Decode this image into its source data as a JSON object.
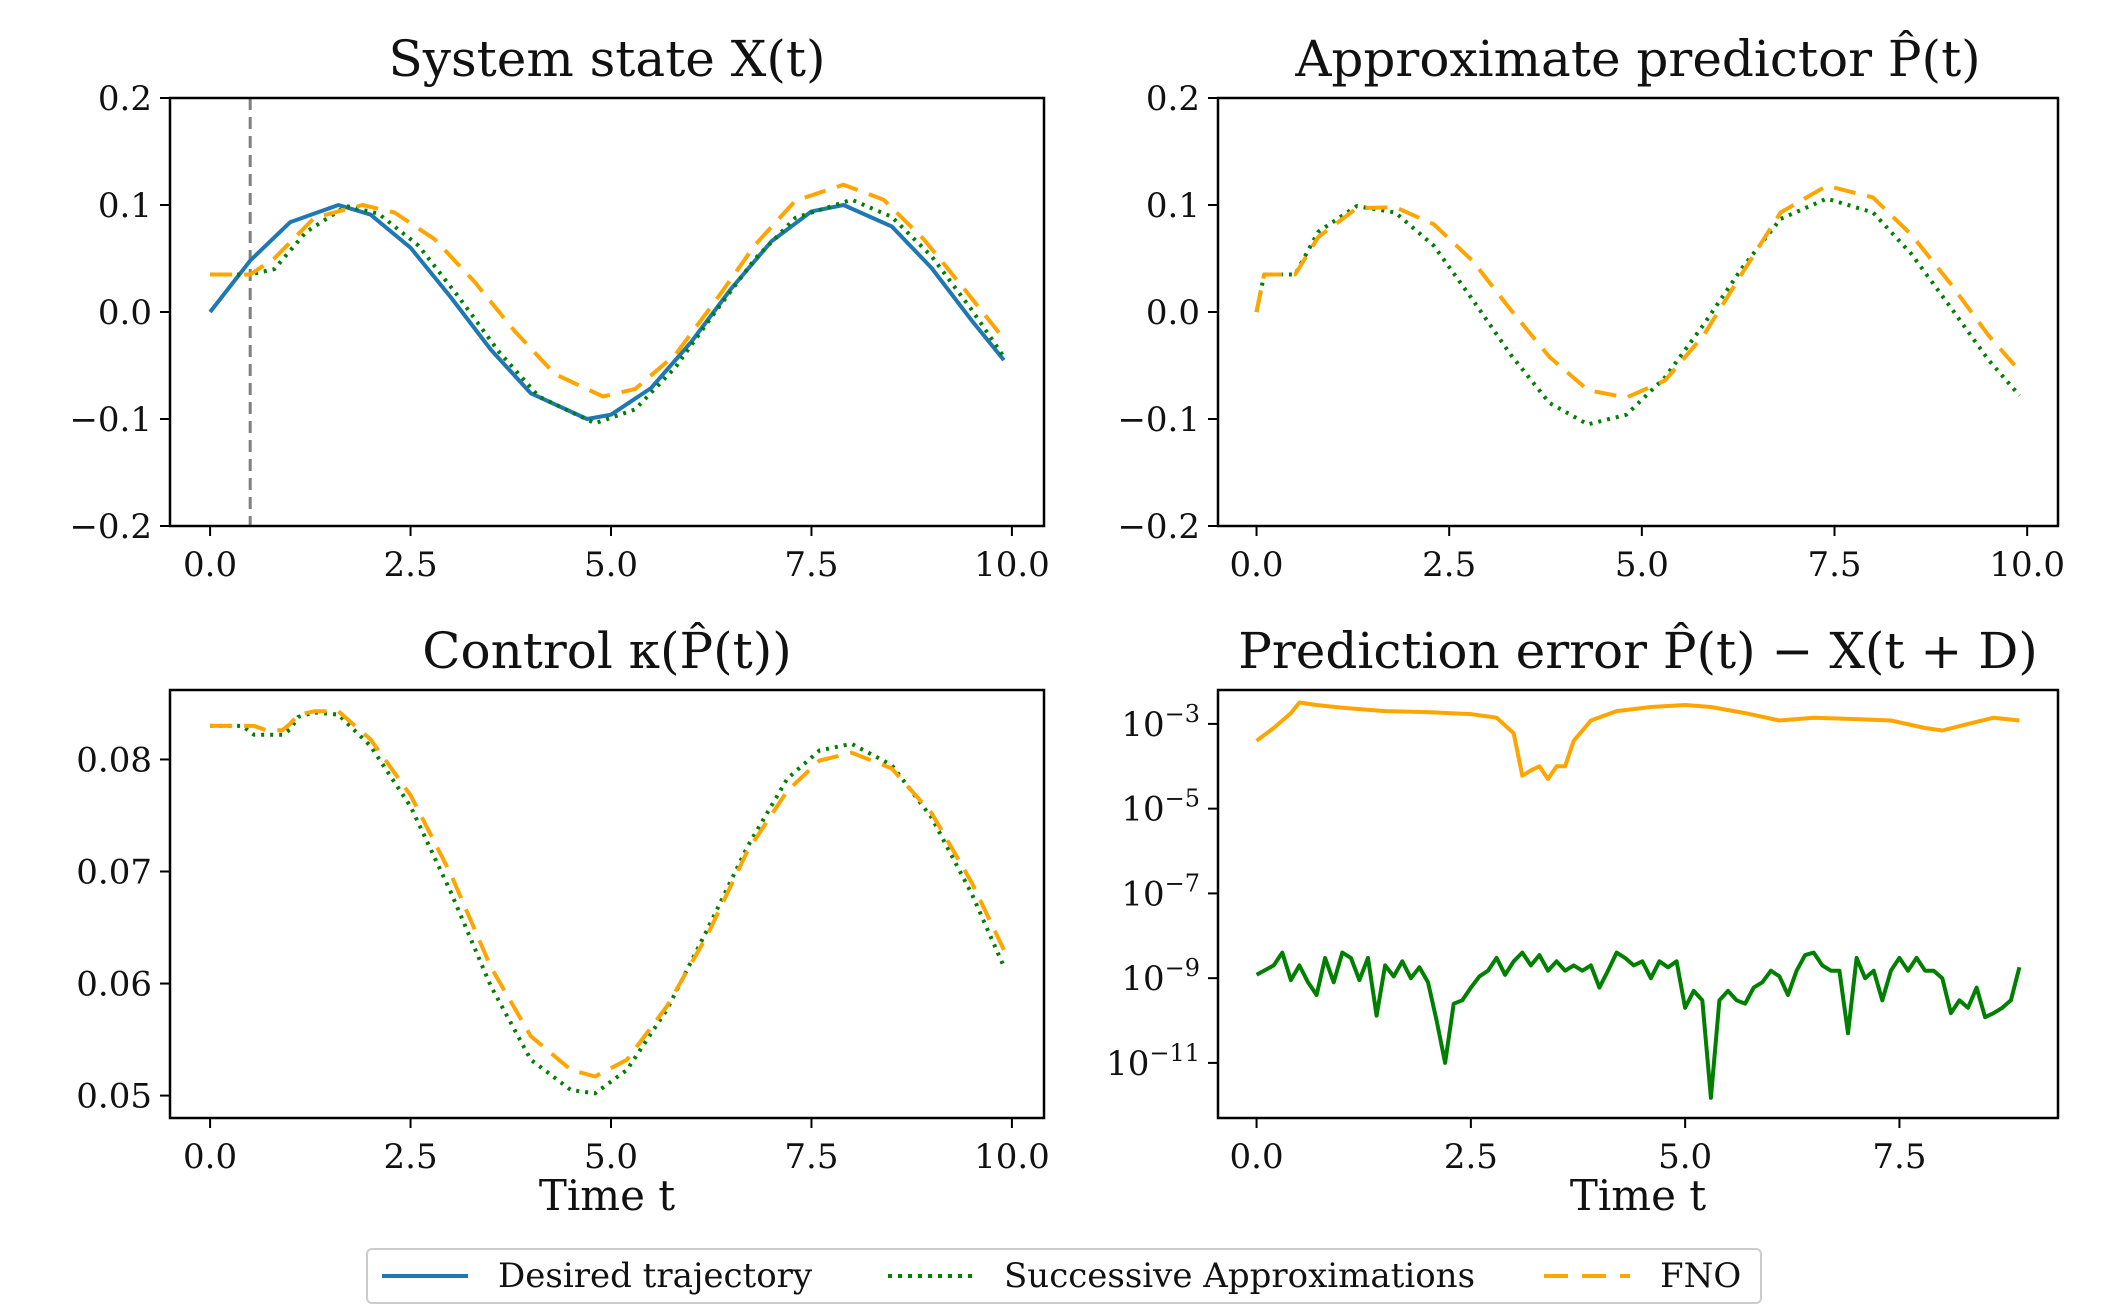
{
  "legend": {
    "entries": [
      {
        "label": "Desired trajectory",
        "color": "#1f77b4",
        "style": "solid"
      },
      {
        "label": "Successive Approximations",
        "color": "#007f00",
        "style": "dotted"
      },
      {
        "label": "FNO",
        "color": "#ffa500",
        "style": "dashed"
      }
    ]
  },
  "chart_data": [
    {
      "type": "line",
      "title": "System state X(t)",
      "xlabel": "",
      "ylabel": "",
      "xlim": [
        -0.5,
        10.4
      ],
      "ylim": [
        -0.2,
        0.2
      ],
      "yscale": "linear",
      "xticks": [
        0.0,
        2.5,
        5.0,
        7.5,
        10.0
      ],
      "xtick_labels": [
        "0.0",
        "2.5",
        "5.0",
        "7.5",
        "10.0"
      ],
      "yticks": [
        -0.2,
        -0.1,
        0.0,
        0.1,
        0.2
      ],
      "ytick_labels": [
        "−0.2",
        "−0.1",
        "0.0",
        "0.1",
        "0.2"
      ],
      "vline": {
        "x": 0.5,
        "color": "#808080",
        "style": "dashed"
      },
      "series": [
        {
          "name": "Desired trajectory",
          "color": "#1f77b4",
          "style": "solid",
          "x": [
            0,
            0.5,
            1.0,
            1.6,
            2.0,
            2.5,
            3.0,
            3.5,
            4.0,
            4.7,
            5.0,
            5.5,
            6.0,
            6.5,
            7.0,
            7.5,
            7.9,
            8.5,
            9.0,
            9.5,
            9.9
          ],
          "y": [
            0.0,
            0.048,
            0.084,
            0.1,
            0.091,
            0.06,
            0.014,
            -0.035,
            -0.076,
            -0.1,
            -0.096,
            -0.071,
            -0.028,
            0.022,
            0.066,
            0.094,
            0.1,
            0.08,
            0.041,
            -0.008,
            -0.045
          ]
        },
        {
          "name": "Successive Approximations",
          "color": "#007f00",
          "style": "dotted",
          "x": [
            0,
            0.5,
            0.8,
            1.2,
            1.7,
            2.1,
            2.6,
            3.1,
            3.6,
            4.1,
            4.8,
            5.3,
            5.8,
            6.3,
            6.8,
            7.3,
            8.0,
            8.5,
            9.0,
            9.5,
            9.9
          ],
          "y": [
            0.035,
            0.035,
            0.04,
            0.075,
            0.099,
            0.092,
            0.062,
            0.014,
            -0.037,
            -0.079,
            -0.104,
            -0.091,
            -0.052,
            0.0,
            0.05,
            0.088,
            0.105,
            0.089,
            0.052,
            0.002,
            -0.042
          ]
        },
        {
          "name": "FNO",
          "color": "#ffa500",
          "style": "dashed",
          "x": [
            0,
            0.5,
            0.8,
            1.3,
            1.9,
            2.3,
            2.8,
            3.3,
            3.8,
            4.3,
            4.9,
            5.3,
            5.8,
            6.3,
            6.8,
            7.3,
            7.9,
            8.4,
            8.9,
            9.4,
            9.9
          ],
          "y": [
            0.035,
            0.035,
            0.05,
            0.088,
            0.1,
            0.093,
            0.068,
            0.028,
            -0.018,
            -0.058,
            -0.079,
            -0.072,
            -0.04,
            0.01,
            0.063,
            0.104,
            0.119,
            0.105,
            0.068,
            0.022,
            -0.025
          ]
        }
      ]
    },
    {
      "type": "line",
      "title": "Approximate predictor P̂(t)",
      "xlabel": "",
      "ylabel": "",
      "xlim": [
        -0.5,
        10.4
      ],
      "ylim": [
        -0.2,
        0.2
      ],
      "yscale": "linear",
      "xticks": [
        0.0,
        2.5,
        5.0,
        7.5,
        10.0
      ],
      "xtick_labels": [
        "0.0",
        "2.5",
        "5.0",
        "7.5",
        "10.0"
      ],
      "yticks": [
        -0.2,
        -0.1,
        0.0,
        0.1,
        0.2
      ],
      "ytick_labels": [
        "−0.2",
        "−0.1",
        "0.0",
        "0.1",
        "0.2"
      ],
      "series": [
        {
          "name": "Successive Approximations",
          "color": "#007f00",
          "style": "dotted",
          "x": [
            0,
            0.1,
            0.5,
            0.8,
            1.3,
            1.8,
            2.3,
            2.8,
            3.3,
            3.8,
            4.3,
            4.8,
            5.3,
            5.8,
            6.3,
            6.8,
            7.4,
            8.0,
            8.5,
            9.0,
            9.5,
            9.9
          ],
          "y": [
            0.0,
            0.035,
            0.035,
            0.075,
            0.099,
            0.093,
            0.062,
            0.012,
            -0.04,
            -0.085,
            -0.105,
            -0.096,
            -0.061,
            -0.012,
            0.041,
            0.087,
            0.106,
            0.093,
            0.054,
            0.005,
            -0.045,
            -0.078
          ]
        },
        {
          "name": "FNO",
          "color": "#ffa500",
          "style": "dashed",
          "x": [
            0,
            0.1,
            0.5,
            0.8,
            1.3,
            1.8,
            2.3,
            2.8,
            3.3,
            3.8,
            4.3,
            4.8,
            5.3,
            5.8,
            6.3,
            6.8,
            7.4,
            8.0,
            8.5,
            9.0,
            9.5,
            9.9
          ],
          "y": [
            0.0,
            0.035,
            0.035,
            0.07,
            0.097,
            0.098,
            0.082,
            0.048,
            0.002,
            -0.042,
            -0.073,
            -0.08,
            -0.064,
            -0.022,
            0.036,
            0.093,
            0.118,
            0.107,
            0.072,
            0.027,
            -0.022,
            -0.055
          ]
        }
      ]
    },
    {
      "type": "line",
      "title": "Control κ(P̂(t))",
      "xlabel": "Time t",
      "ylabel": "",
      "xlim": [
        -0.5,
        10.4
      ],
      "ylim": [
        0.048,
        0.0862
      ],
      "yscale": "linear",
      "xticks": [
        0.0,
        2.5,
        5.0,
        7.5,
        10.0
      ],
      "xtick_labels": [
        "0.0",
        "2.5",
        "5.0",
        "7.5",
        "10.0"
      ],
      "yticks": [
        0.05,
        0.06,
        0.07,
        0.08
      ],
      "ytick_labels": [
        "0.05",
        "0.06",
        "0.07",
        "0.08"
      ],
      "series": [
        {
          "name": "Successive Approximations",
          "color": "#007f00",
          "style": "dotted",
          "x": [
            0,
            0.4,
            0.55,
            0.7,
            0.9,
            1.0,
            1.1,
            1.3,
            1.6,
            2.0,
            2.5,
            3.0,
            3.5,
            4.0,
            4.5,
            4.8,
            5.2,
            5.7,
            6.2,
            6.7,
            7.2,
            7.6,
            8.0,
            8.5,
            9.0,
            9.5,
            9.9
          ],
          "y": [
            0.083,
            0.083,
            0.0822,
            0.0822,
            0.0822,
            0.0827,
            0.0838,
            0.0842,
            0.084,
            0.0812,
            0.0758,
            0.0682,
            0.0598,
            0.0532,
            0.0505,
            0.0502,
            0.0523,
            0.0577,
            0.0648,
            0.0722,
            0.0783,
            0.0808,
            0.0814,
            0.0795,
            0.0748,
            0.068,
            0.0615
          ]
        },
        {
          "name": "FNO",
          "color": "#ffa500",
          "style": "dashed",
          "x": [
            0,
            0.4,
            0.55,
            0.7,
            0.9,
            1.0,
            1.1,
            1.3,
            1.6,
            2.0,
            2.5,
            3.0,
            3.5,
            4.0,
            4.5,
            4.8,
            5.2,
            5.7,
            6.2,
            6.7,
            7.2,
            7.6,
            8.0,
            8.5,
            9.0,
            9.5,
            9.9
          ],
          "y": [
            0.083,
            0.083,
            0.083,
            0.0826,
            0.0826,
            0.0832,
            0.084,
            0.0843,
            0.0843,
            0.0818,
            0.0768,
            0.0698,
            0.0615,
            0.0553,
            0.0523,
            0.0517,
            0.0532,
            0.058,
            0.0643,
            0.0718,
            0.0772,
            0.0799,
            0.0806,
            0.0792,
            0.0752,
            0.069,
            0.063
          ]
        }
      ]
    },
    {
      "type": "line",
      "title": "Prediction error P̂(t) − X(t + D)",
      "xlabel": "Time t",
      "ylabel": "",
      "xlim": [
        -0.45,
        9.35
      ],
      "ylim_log10": [
        -12.3,
        -2.2
      ],
      "yscale": "log",
      "xticks": [
        0.0,
        2.5,
        5.0,
        7.5
      ],
      "xtick_labels": [
        "0.0",
        "2.5",
        "5.0",
        "7.5"
      ],
      "yticks_log10": [
        -3,
        -5,
        -7,
        -9,
        -11
      ],
      "ytick_labels": [
        "10−3",
        "10−5",
        "10−7",
        "10−9",
        "10−11"
      ],
      "series": [
        {
          "name": "FNO",
          "color": "#ffa500",
          "style": "solid",
          "x": [
            0,
            0.2,
            0.4,
            0.5,
            0.7,
            1.0,
            1.5,
            2.0,
            2.5,
            2.8,
            3.0,
            3.1,
            3.2,
            3.3,
            3.4,
            3.5,
            3.6,
            3.7,
            3.9,
            4.2,
            4.6,
            5.0,
            5.3,
            5.7,
            6.1,
            6.5,
            7.0,
            7.4,
            7.8,
            8.0,
            8.3,
            8.6,
            8.9
          ],
          "y": [
            0.0004,
            0.0008,
            0.0018,
            0.0032,
            0.0028,
            0.0024,
            0.002,
            0.0019,
            0.0017,
            0.0014,
            0.0006,
            6e-05,
            8e-05,
            0.0001,
            5e-05,
            0.0001,
            0.0001,
            0.0004,
            0.0012,
            0.002,
            0.0025,
            0.0028,
            0.0025,
            0.0018,
            0.0012,
            0.0014,
            0.0013,
            0.0012,
            0.0008,
            0.0007,
            0.001,
            0.0014,
            0.0012
          ]
        },
        {
          "name": "Successive Approximations",
          "color": "#007f00",
          "style": "solid",
          "x": [
            0,
            0.2,
            0.3,
            0.4,
            0.5,
            0.6,
            0.7,
            0.8,
            0.9,
            1.0,
            1.1,
            1.2,
            1.3,
            1.4,
            1.5,
            1.6,
            1.7,
            1.8,
            1.9,
            2.0,
            2.1,
            2.2,
            2.3,
            2.4,
            2.5,
            2.6,
            2.7,
            2.8,
            2.9,
            3.0,
            3.1,
            3.2,
            3.3,
            3.4,
            3.5,
            3.6,
            3.7,
            3.8,
            3.9,
            4.0,
            4.1,
            4.2,
            4.3,
            4.4,
            4.5,
            4.6,
            4.7,
            4.8,
            4.9,
            5.0,
            5.1,
            5.2,
            5.3,
            5.4,
            5.5,
            5.6,
            5.7,
            5.8,
            5.9,
            6.0,
            6.1,
            6.2,
            6.3,
            6.4,
            6.5,
            6.6,
            6.7,
            6.8,
            6.9,
            7.0,
            7.1,
            7.2,
            7.3,
            7.4,
            7.5,
            7.6,
            7.7,
            7.8,
            7.9,
            8.0,
            8.1,
            8.2,
            8.3,
            8.4,
            8.5,
            8.6,
            8.7,
            8.8,
            8.9
          ],
          "y": [
            1.2e-09,
            2e-09,
            4e-09,
            9e-10,
            2e-09,
            8e-10,
            4e-10,
            3e-09,
            8e-10,
            4e-09,
            3e-09,
            9e-10,
            3e-09,
            1.3e-10,
            2e-09,
            1.1e-09,
            2.5e-09,
            1e-09,
            1.8e-09,
            8e-10,
            1e-10,
            1e-11,
            2.5e-10,
            3e-10,
            6e-10,
            1.1e-09,
            1.5e-09,
            3e-09,
            1.2e-09,
            2.5e-09,
            4e-09,
            2e-09,
            3.5e-09,
            1.5e-09,
            2.5e-09,
            1.5e-09,
            2e-09,
            1.5e-09,
            2e-09,
            6e-10,
            1.5e-09,
            4e-09,
            3e-09,
            2e-09,
            2.5e-09,
            1e-09,
            2.5e-09,
            1.8e-09,
            2.5e-09,
            2e-10,
            5e-10,
            3e-10,
            1.5e-12,
            3e-10,
            5e-10,
            3e-10,
            2.5e-10,
            6e-10,
            8e-10,
            1.5e-09,
            1.1e-09,
            4e-10,
            1.5e-09,
            3.5e-09,
            4e-09,
            2e-09,
            1.5e-09,
            1.5e-09,
            5e-11,
            3e-09,
            1e-09,
            1.5e-09,
            3e-10,
            1.5e-09,
            3e-09,
            1.5e-09,
            3e-09,
            1.5e-09,
            1.5e-09,
            1e-09,
            1.5e-10,
            3e-10,
            2e-10,
            6e-10,
            1.2e-10,
            1.5e-10,
            2e-10,
            3e-10,
            1.8e-09
          ]
        }
      ]
    }
  ]
}
